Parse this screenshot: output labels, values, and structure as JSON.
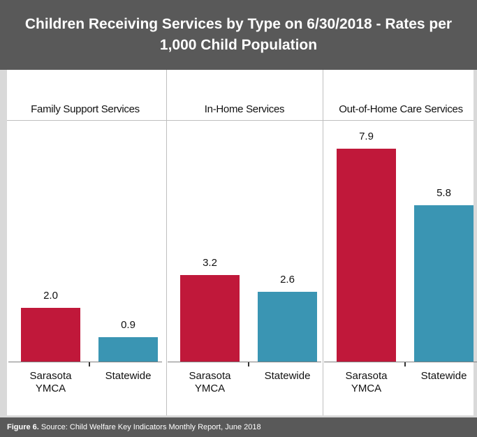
{
  "chart_data": {
    "type": "bar",
    "title": "Children Receiving Services by Type on 6/30/2018 - Rates per 1,000 Child Population",
    "categories": [
      "Family Support Services",
      "In-Home Services",
      "Out-of-Home Care Services"
    ],
    "series": [
      {
        "name": "Sarasota YMCA",
        "color": "#c0183a",
        "values": [
          2.0,
          3.2,
          7.9
        ],
        "value_labels": [
          "2.0",
          "3.2",
          "7.9"
        ]
      },
      {
        "name": "Statewide",
        "color": "#3a95b3",
        "values": [
          0.9,
          2.6,
          5.8
        ]
      }
    ],
    "figure_label": "Figure 6.",
    "source": "Source:  Child Welfare Key Indicators Monthly Report, June 2018"
  }
}
